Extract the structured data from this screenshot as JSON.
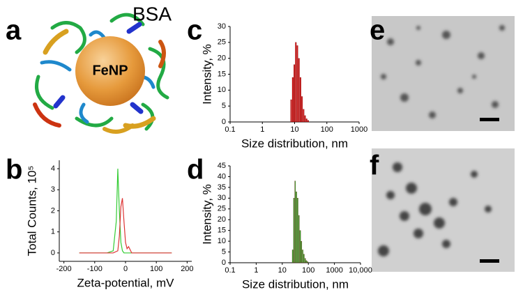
{
  "panels": {
    "a": "a",
    "b": "b",
    "c": "c",
    "d": "d",
    "e": "e",
    "f": "f"
  },
  "illustration": {
    "particle": "FeNP",
    "protein": "BSA"
  },
  "chart_data": [
    {
      "type": "line",
      "x_label": "Zeta-potential, mV",
      "y_label": "Total Counts, 10⁵",
      "xlim": [
        -215,
        215
      ],
      "ylim": [
        -0.4,
        4.4
      ],
      "xticks": [
        -200,
        -100,
        0,
        100,
        200
      ],
      "yticks": [
        0,
        1,
        2,
        3,
        4
      ],
      "grid": false,
      "series": [
        {
          "color": "#33cc33",
          "x": [
            -150,
            -60,
            -40,
            -30,
            -25,
            -20,
            -15,
            -10,
            -5,
            0,
            10,
            150
          ],
          "values": [
            0,
            0,
            0.1,
            1.5,
            4.0,
            2.0,
            0.5,
            0.1,
            0,
            0,
            0,
            0
          ]
        },
        {
          "color": "#dd3333",
          "x": [
            -150,
            -40,
            -25,
            -20,
            -15,
            -10,
            -5,
            0,
            5,
            10,
            20,
            150
          ],
          "values": [
            0,
            0,
            0.1,
            0.8,
            2.2,
            2.6,
            1.5,
            0.5,
            0.2,
            0.3,
            0,
            0
          ]
        }
      ]
    },
    {
      "type": "histogram",
      "x_label": "Size distribution, nm",
      "y_label": "Intensity, %",
      "log_x": true,
      "color": "#dd1111",
      "xlim": [
        0.1,
        1000
      ],
      "ylim": [
        0,
        30
      ],
      "xticks": [
        0.1,
        1,
        10,
        100,
        1000
      ],
      "yticks": [
        0,
        5,
        10,
        15,
        20,
        25,
        30
      ],
      "bins": [
        7.5,
        8.4,
        9.4,
        10.5,
        11.7,
        13.1,
        14.6,
        16.3,
        18.2,
        20.3,
        22.7,
        25.3,
        28.3
      ],
      "values": [
        7,
        14,
        18,
        25,
        24,
        20,
        14,
        8,
        4,
        2,
        1,
        0.5
      ]
    },
    {
      "type": "histogram",
      "x_label": "Size distribution, nm",
      "y_label": "Intensity, %",
      "log_x": true,
      "color": "#22bb22",
      "xlim": [
        0.1,
        10000
      ],
      "ylim": [
        0,
        45
      ],
      "xticks": [
        0.1,
        1,
        10,
        100,
        1000,
        {
          "value": 10000,
          "label": "10,000"
        }
      ],
      "yticks": [
        0,
        5,
        10,
        15,
        20,
        25,
        30,
        35,
        40,
        45
      ],
      "bins": [
        24,
        27,
        30,
        33.5,
        37.5,
        42,
        47,
        52.5,
        58.5,
        65.5,
        73,
        81.5,
        91,
        101.5
      ],
      "values": [
        6,
        30,
        38,
        33,
        30,
        22,
        15,
        10,
        6,
        4,
        2,
        1,
        0.5
      ]
    }
  ]
}
